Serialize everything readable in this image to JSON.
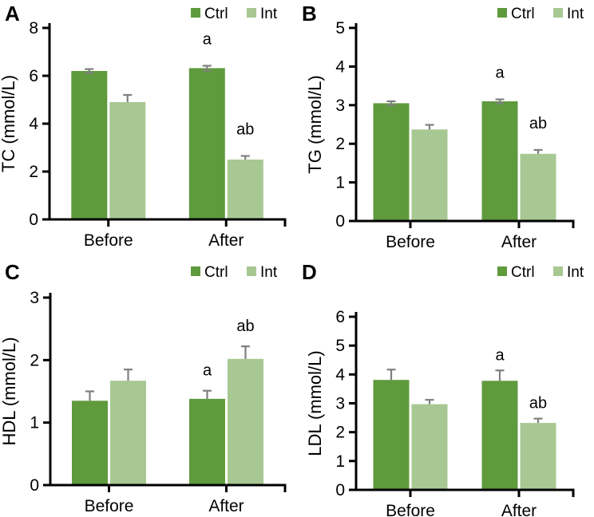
{
  "figure": {
    "colors": {
      "ctrl_bar": "#5f9a3d",
      "int_bar": "#a7c893",
      "error_bar": "#7f7f7f",
      "axis": "#000000",
      "text": "#000000"
    }
  },
  "chart_data": [
    {
      "type": "bar",
      "panel": "A",
      "ylabel": "TC (mmol/L)",
      "categories": [
        "Before",
        "After"
      ],
      "ylim": [
        0,
        8
      ],
      "yticks": [
        0,
        2,
        4,
        6,
        8
      ],
      "grid": false,
      "legend": [
        "Ctrl",
        "Int"
      ],
      "legend_position": "top-right",
      "series": [
        {
          "name": "Ctrl",
          "values": [
            6.2,
            6.32
          ],
          "errors": [
            0.08,
            0.1
          ],
          "sig": [
            "",
            "a"
          ]
        },
        {
          "name": "Int",
          "values": [
            4.9,
            2.5
          ],
          "errors": [
            0.3,
            0.15
          ],
          "sig": [
            "",
            "ab"
          ]
        }
      ]
    },
    {
      "type": "bar",
      "panel": "B",
      "ylabel": "TG (mmol/L)",
      "categories": [
        "Before",
        "After"
      ],
      "ylim": [
        0,
        5
      ],
      "yticks": [
        0,
        1,
        2,
        3,
        4,
        5
      ],
      "grid": false,
      "legend": [
        "Ctrl",
        "Int"
      ],
      "legend_position": "top-right",
      "series": [
        {
          "name": "Ctrl",
          "values": [
            3.05,
            3.1
          ],
          "errors": [
            0.05,
            0.05
          ],
          "sig": [
            "",
            "a"
          ]
        },
        {
          "name": "Int",
          "values": [
            2.37,
            1.74
          ],
          "errors": [
            0.12,
            0.1
          ],
          "sig": [
            "",
            "ab"
          ]
        }
      ]
    },
    {
      "type": "bar",
      "panel": "C",
      "ylabel": "HDL (mmol/L)",
      "categories": [
        "Before",
        "After"
      ],
      "ylim": [
        0,
        3
      ],
      "yticks": [
        0,
        1,
        2,
        3
      ],
      "grid": false,
      "legend": [
        "Ctrl",
        "Int"
      ],
      "legend_position": "top-right",
      "series": [
        {
          "name": "Ctrl",
          "values": [
            1.35,
            1.38
          ],
          "errors": [
            0.15,
            0.13
          ],
          "sig": [
            "",
            "a"
          ]
        },
        {
          "name": "Int",
          "values": [
            1.67,
            2.02
          ],
          "errors": [
            0.18,
            0.2
          ],
          "sig": [
            "",
            "ab"
          ]
        }
      ]
    },
    {
      "type": "bar",
      "panel": "D",
      "ylabel": "LDL (mmol/L)",
      "categories": [
        "Before",
        "After"
      ],
      "ylim": [
        0,
        6
      ],
      "yticks": [
        0,
        1,
        2,
        3,
        4,
        5,
        6
      ],
      "grid": false,
      "legend": [
        "Ctrl",
        "Int"
      ],
      "legend_position": "top-right",
      "series": [
        {
          "name": "Ctrl",
          "values": [
            3.81,
            3.78
          ],
          "errors": [
            0.36,
            0.36
          ],
          "sig": [
            "",
            "a"
          ]
        },
        {
          "name": "Int",
          "values": [
            2.97,
            2.32
          ],
          "errors": [
            0.15,
            0.15
          ],
          "sig": [
            "",
            "ab"
          ]
        }
      ]
    }
  ]
}
